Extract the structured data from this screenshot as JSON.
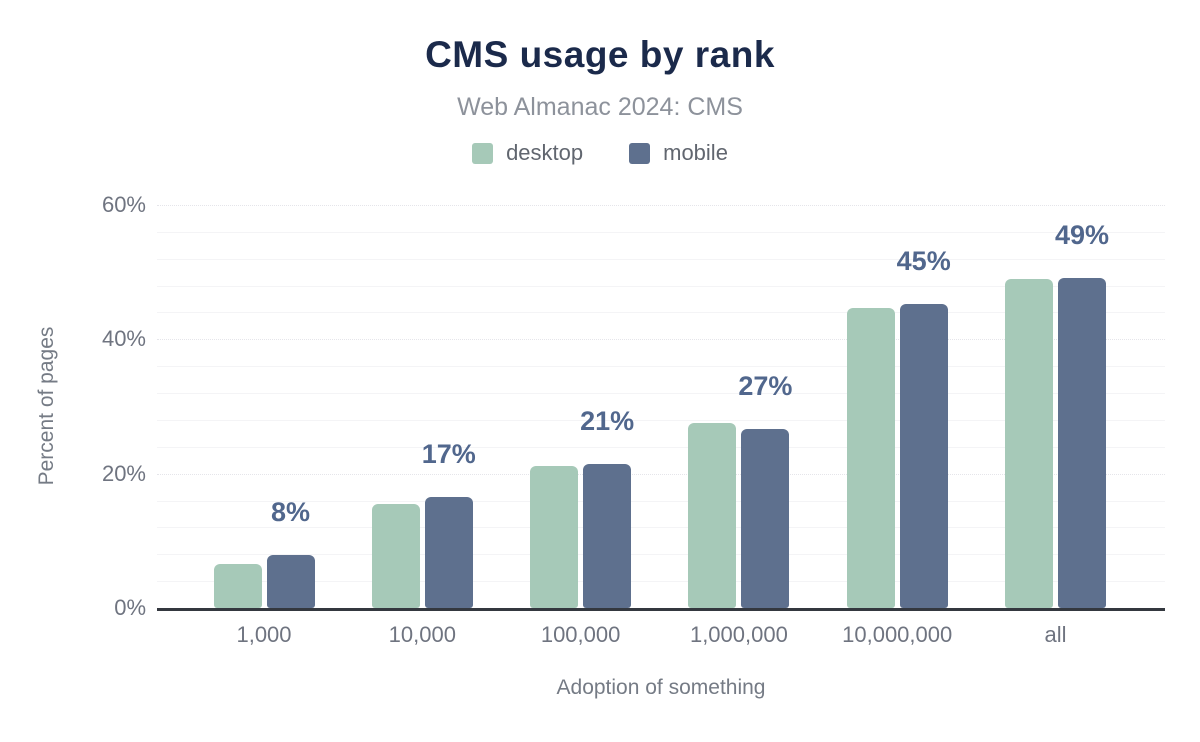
{
  "title": "CMS usage by rank",
  "subtitle": "Web Almanac 2024: CMS",
  "legend": {
    "items": [
      {
        "label": "desktop",
        "color": "#a6c9b8"
      },
      {
        "label": "mobile",
        "color": "#5e708e"
      }
    ]
  },
  "colors": {
    "title_text": "#1b2a4b",
    "subtitle_text": "#8d929b",
    "axis_text": "#6f7480",
    "value_label_text": "#51678d",
    "axis_line": "#34383f",
    "desktop_bar": "#a6c9b8",
    "mobile_bar": "#5e708e"
  },
  "chart_data": {
    "type": "bar",
    "title": "CMS usage by rank",
    "subtitle": "Web Almanac 2024: CMS",
    "categories": [
      "1,000",
      "10,000",
      "100,000",
      "1,000,000",
      "10,000,000",
      "all"
    ],
    "series": [
      {
        "name": "desktop",
        "color": "#a6c9b8",
        "values": [
          6.5,
          15.5,
          21.1,
          27.6,
          44.6,
          49.0
        ]
      },
      {
        "name": "mobile",
        "color": "#5e708e",
        "values": [
          7.9,
          16.6,
          21.4,
          26.7,
          45.2,
          49.1
        ]
      }
    ],
    "bar_labels": [
      "8%",
      "17%",
      "21%",
      "27%",
      "45%",
      "49%"
    ],
    "xlabel": "Adoption of something",
    "ylabel": "Percent of pages",
    "ylim": [
      0,
      60
    ],
    "yticks": [
      0,
      20,
      40,
      60
    ],
    "ytick_labels": [
      "0%",
      "20%",
      "40%",
      "60%"
    ],
    "minor_grid_step": 4,
    "major_grid_step": 20,
    "grid": "horizontal",
    "legend_position": "top"
  }
}
